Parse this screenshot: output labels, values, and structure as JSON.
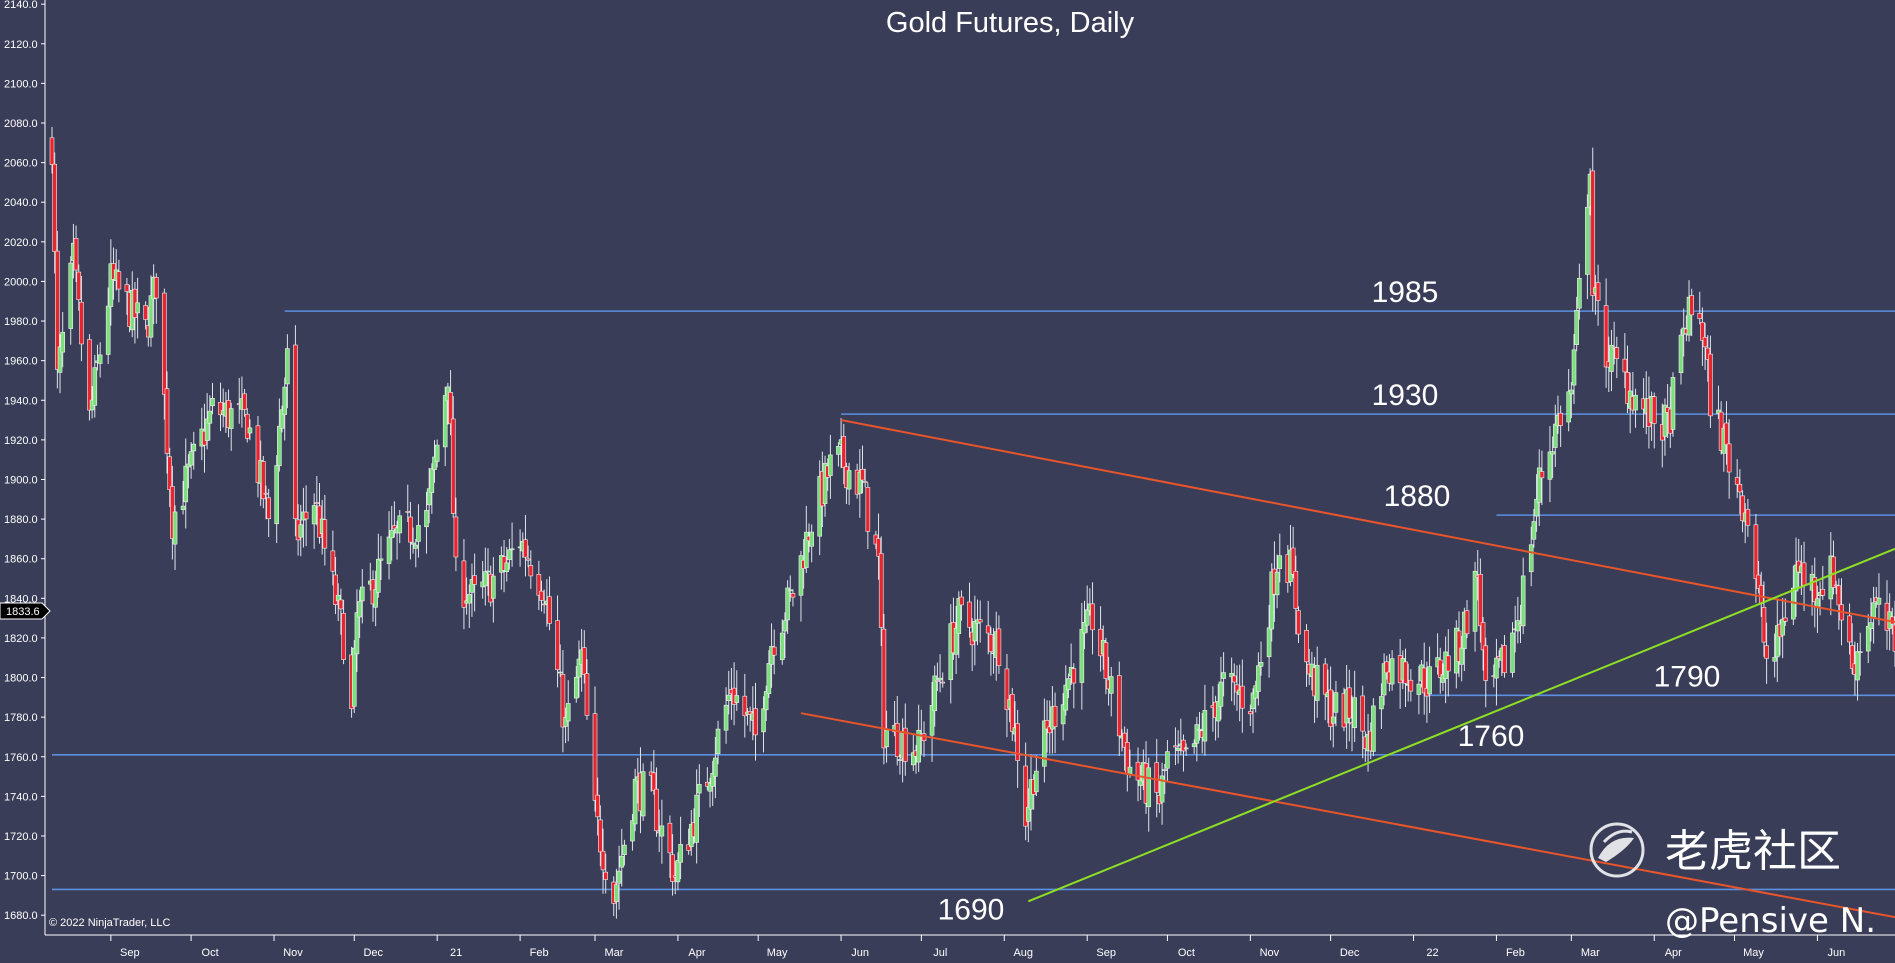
{
  "chart_data": {
    "type": "candlestick",
    "title": "Gold Futures, Daily",
    "credit": "© 2022 NinjaTrader, LLC",
    "watermark": {
      "brand": "老虎社区",
      "author": "@Pensive N."
    },
    "y_axis": {
      "min": 1670,
      "max": 2145,
      "ticks": [
        "1680.0",
        "1700.0",
        "1720.0",
        "1740.0",
        "1760.0",
        "1780.0",
        "1800.0",
        "1820.0",
        "1840.0",
        "1860.0",
        "1880.0",
        "1900.0",
        "1920.0",
        "1940.0",
        "1960.0",
        "1980.0",
        "2000.0",
        "2020.0",
        "2040.0",
        "2060.0",
        "2080.0",
        "2100.0",
        "2120.0",
        "2140.0"
      ],
      "current_price": "1833.6"
    },
    "x_axis": {
      "labels": [
        "Sep",
        "Oct",
        "Nov",
        "Dec",
        "21",
        "Feb",
        "Mar",
        "Apr",
        "May",
        "Jun",
        "Jul",
        "Aug",
        "Sep",
        "Oct",
        "Nov",
        "Dec",
        "22",
        "Feb",
        "Mar",
        "Apr",
        "May",
        "Jun"
      ]
    },
    "horizontal_levels": [
      {
        "label": "1985",
        "value": 1985,
        "from": "2020-11-05",
        "to": "2022-06-30"
      },
      {
        "label": "1930",
        "value": 1933,
        "from": "2021-06-01",
        "to": "2022-06-30"
      },
      {
        "label": "1880",
        "value": 1882,
        "from": "2022-02-01",
        "to": "2022-06-30"
      },
      {
        "label": "1790",
        "value": 1791,
        "from": "2022-01-07",
        "to": "2022-06-30"
      },
      {
        "label": "1760",
        "value": 1761,
        "from": "2020-08-10",
        "to": "2022-06-30"
      },
      {
        "label": "1690",
        "value": 1693,
        "from": "2020-08-10",
        "to": "2022-06-30"
      }
    ],
    "trendlines": [
      {
        "color": "#e8552b",
        "from": {
          "date": "2021-06-01",
          "value": 1930
        },
        "to": {
          "date": "2022-06-30",
          "value": 1828
        }
      },
      {
        "color": "#e8552b",
        "from": {
          "date": "2021-05-17",
          "value": 1782
        },
        "to": {
          "date": "2022-06-30",
          "value": 1679
        }
      },
      {
        "color": "#8ee024",
        "from": {
          "date": "2021-08-10",
          "value": 1687
        },
        "to": {
          "date": "2022-06-30",
          "value": 1865
        }
      }
    ],
    "colors": {
      "up": "#7be07b",
      "down": "#e8242f",
      "level_line": "#5b8fe0",
      "background": "#3a3d58"
    },
    "anchors": [
      [
        "2020-08-10",
        2070
      ],
      [
        "2020-08-12",
        1950
      ],
      [
        "2020-08-18",
        2010
      ],
      [
        "2020-08-24",
        1930
      ],
      [
        "2020-09-01",
        2000
      ],
      [
        "2020-09-14",
        1975
      ],
      [
        "2020-09-18",
        2000
      ],
      [
        "2020-09-24",
        1880
      ],
      [
        "2020-10-09",
        1935
      ],
      [
        "2020-10-22",
        1930
      ],
      [
        "2020-10-30",
        1880
      ],
      [
        "2020-11-06",
        1960
      ],
      [
        "2020-11-09",
        1870
      ],
      [
        "2020-11-16",
        1890
      ],
      [
        "2020-11-27",
        1820
      ],
      [
        "2020-11-30",
        1780
      ],
      [
        "2020-12-02",
        1830
      ],
      [
        "2020-12-16",
        1870
      ],
      [
        "2020-12-28",
        1880
      ],
      [
        "2021-01-05",
        1955
      ],
      [
        "2021-01-08",
        1850
      ],
      [
        "2021-01-15",
        1840
      ],
      [
        "2021-01-26",
        1855
      ],
      [
        "2021-02-01",
        1870
      ],
      [
        "2021-02-10",
        1845
      ],
      [
        "2021-02-18",
        1775
      ],
      [
        "2021-02-24",
        1810
      ],
      [
        "2021-03-01",
        1730
      ],
      [
        "2021-03-08",
        1690
      ],
      [
        "2021-03-16",
        1745
      ],
      [
        "2021-03-22",
        1740
      ],
      [
        "2021-03-31",
        1700
      ],
      [
        "2021-04-12",
        1750
      ],
      [
        "2021-04-21",
        1795
      ],
      [
        "2021-04-30",
        1770
      ],
      [
        "2021-05-06",
        1818
      ],
      [
        "2021-05-14",
        1843
      ],
      [
        "2021-05-21",
        1880
      ],
      [
        "2021-05-28",
        1906
      ],
      [
        "2021-06-01",
        1910
      ],
      [
        "2021-06-09",
        1896
      ],
      [
        "2021-06-15",
        1857
      ],
      [
        "2021-06-17",
        1774
      ],
      [
        "2021-06-30",
        1764
      ],
      [
        "2021-07-08",
        1802
      ],
      [
        "2021-07-15",
        1830
      ],
      [
        "2021-07-30",
        1817
      ],
      [
        "2021-08-06",
        1764
      ],
      [
        "2021-08-09",
        1730
      ],
      [
        "2021-08-12",
        1752
      ],
      [
        "2021-08-20",
        1784
      ],
      [
        "2021-09-03",
        1830
      ],
      [
        "2021-09-10",
        1792
      ],
      [
        "2021-09-17",
        1754
      ],
      [
        "2021-09-28",
        1738
      ],
      [
        "2021-10-01",
        1759
      ],
      [
        "2021-10-08",
        1757
      ],
      [
        "2021-10-22",
        1796
      ],
      [
        "2021-11-02",
        1788
      ],
      [
        "2021-11-12",
        1868
      ],
      [
        "2021-11-16",
        1855
      ],
      [
        "2021-11-22",
        1805
      ],
      [
        "2021-12-01",
        1784
      ],
      [
        "2021-12-10",
        1783
      ],
      [
        "2021-12-15",
        1767
      ],
      [
        "2021-12-22",
        1808
      ],
      [
        "2022-01-07",
        1798
      ],
      [
        "2022-01-18",
        1816
      ],
      [
        "2022-01-25",
        1852
      ],
      [
        "2022-01-28",
        1788
      ],
      [
        "2022-02-04",
        1808
      ],
      [
        "2022-02-10",
        1836
      ],
      [
        "2022-02-17",
        1899
      ],
      [
        "2022-02-24",
        1930
      ],
      [
        "2022-03-01",
        1944
      ],
      [
        "2022-03-08",
        2062
      ],
      [
        "2022-03-09",
        1994
      ],
      [
        "2022-03-14",
        1965
      ],
      [
        "2022-03-29",
        1933
      ],
      [
        "2022-04-06",
        1926
      ],
      [
        "2022-04-13",
        1981
      ],
      [
        "2022-04-18",
        1985
      ],
      [
        "2022-04-22",
        1941
      ],
      [
        "2022-04-29",
        1910
      ],
      [
        "2022-05-06",
        1882
      ],
      [
        "2022-05-13",
        1809
      ],
      [
        "2022-05-16",
        1811
      ],
      [
        "2022-05-24",
        1855
      ],
      [
        "2022-05-31",
        1846
      ],
      [
        "2022-06-07",
        1853
      ],
      [
        "2022-06-14",
        1806
      ],
      [
        "2022-06-22",
        1836
      ],
      [
        "2022-06-30",
        1818
      ]
    ]
  }
}
